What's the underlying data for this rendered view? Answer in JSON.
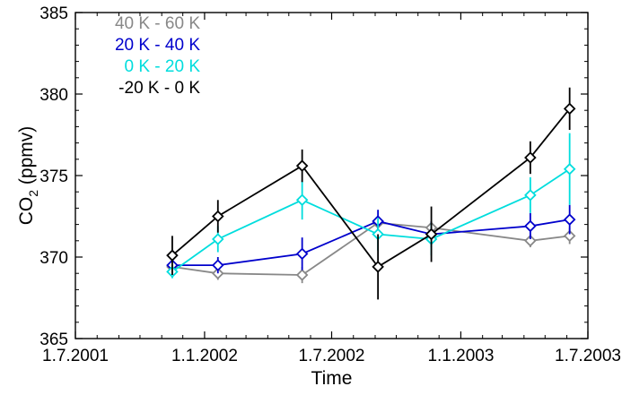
{
  "chart_data": {
    "type": "line",
    "title": "",
    "xlabel": "Time",
    "ylabel_main": "CO",
    "ylabel_sub": "2",
    "ylabel_unit": " (ppmv)",
    "xlim": [
      "2001-07-01",
      "2003-07-01"
    ],
    "ylim": [
      365,
      385
    ],
    "x_ticks": [
      {
        "date": "2001-07-01",
        "label": "1.7.2001"
      },
      {
        "date": "2002-01-01",
        "label": "1.1.2002"
      },
      {
        "date": "2002-07-01",
        "label": "1.7.2002"
      },
      {
        "date": "2003-01-01",
        "label": "1.1.2003"
      },
      {
        "date": "2003-07-01",
        "label": "1.7.2003"
      }
    ],
    "y_ticks": [
      365,
      370,
      375,
      380,
      385
    ],
    "grid": false,
    "legend_position": "top-left",
    "series": [
      {
        "name": "40 K - 60 K",
        "color": "#888888",
        "x": [
          "2001-11-16",
          "2002-01-20",
          "2002-05-20",
          "2002-09-05",
          "2002-11-20",
          "2003-04-10",
          "2003-06-05"
        ],
        "y": [
          369.4,
          369.0,
          368.9,
          372.1,
          371.8,
          371.0,
          371.3
        ],
        "err": [
          0.5,
          0.4,
          0.5,
          0.4,
          0.4,
          0.4,
          0.5
        ]
      },
      {
        "name": "20 K - 40 K",
        "color": "#0000cc",
        "x": [
          "2001-11-16",
          "2002-01-20",
          "2002-05-20",
          "2002-09-05",
          "2002-11-20",
          "2003-04-10",
          "2003-06-05"
        ],
        "y": [
          369.5,
          369.5,
          370.2,
          372.2,
          371.4,
          371.9,
          372.3
        ],
        "err": [
          0.4,
          0.5,
          1.0,
          0.7,
          0.8,
          0.8,
          0.9
        ]
      },
      {
        "name": "0 K - 20 K",
        "color": "#00dddd",
        "x": [
          "2001-11-16",
          "2002-01-20",
          "2002-05-20",
          "2002-09-05",
          "2002-11-20",
          "2003-04-10",
          "2003-06-05"
        ],
        "y": [
          369.1,
          371.1,
          373.5,
          371.4,
          371.1,
          373.8,
          375.4
        ],
        "err": [
          0.4,
          0.8,
          1.2,
          1.0,
          1.0,
          1.1,
          2.2
        ]
      },
      {
        "name": "-20 K - 0 K",
        "color": "#000000",
        "x": [
          "2001-11-16",
          "2002-01-20",
          "2002-05-20",
          "2002-09-05",
          "2002-11-20",
          "2003-04-10",
          "2003-06-05"
        ],
        "y": [
          370.1,
          372.5,
          375.6,
          369.4,
          371.4,
          376.1,
          379.1
        ],
        "err": [
          1.2,
          1.0,
          1.0,
          2.0,
          1.7,
          1.0,
          1.3
        ]
      }
    ]
  }
}
